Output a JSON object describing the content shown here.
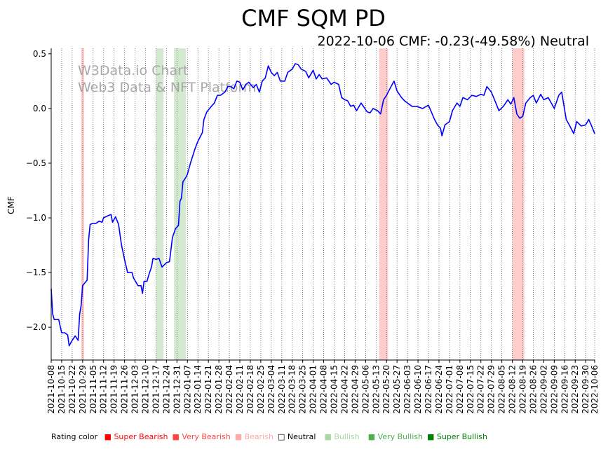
{
  "chart_data": {
    "type": "line",
    "title": "CMF SQM PD",
    "subtitle": "2022-10-06 CMF: -0.23(-49.58%) Neutral",
    "ylabel": "CMF",
    "xlabel": "",
    "ylim": [
      -2.3,
      0.55
    ],
    "yticks": [
      0.5,
      0.0,
      -0.5,
      -1.0,
      -1.5,
      -2.0
    ],
    "ytick_labels": [
      "0.5",
      "0.0",
      "−0.5",
      "−1.0",
      "−1.5",
      "−2.0"
    ],
    "x_start": "2021-10-08",
    "x_end": "2022-10-06",
    "xtick_labels": [
      "2021-10-08",
      "2021-10-15",
      "2021-10-22",
      "2021-10-29",
      "2021-11-05",
      "2021-11-12",
      "2021-11-19",
      "2021-11-26",
      "2021-12-03",
      "2021-12-10",
      "2021-12-17",
      "2021-12-24",
      "2021-12-31",
      "2022-01-07",
      "2022-01-14",
      "2022-01-21",
      "2022-01-28",
      "2022-02-04",
      "2022-02-11",
      "2022-02-18",
      "2022-02-25",
      "2022-03-04",
      "2022-03-11",
      "2022-03-18",
      "2022-03-25",
      "2022-04-01",
      "2022-04-08",
      "2022-04-15",
      "2022-04-22",
      "2022-04-29",
      "2022-05-06",
      "2022-05-13",
      "2022-05-20",
      "2022-05-27",
      "2022-06-03",
      "2022-06-10",
      "2022-06-17",
      "2022-06-24",
      "2022-07-01",
      "2022-07-08",
      "2022-07-15",
      "2022-07-22",
      "2022-07-29",
      "2022-08-05",
      "2022-08-12",
      "2022-08-19",
      "2022-08-26",
      "2022-09-02",
      "2022-09-09",
      "2022-09-16",
      "2022-09-23",
      "2022-09-30",
      "2022-10-06"
    ],
    "grid": "x-dotted",
    "series": [
      {
        "name": "",
        "color": "#0000ff",
        "points": [
          [
            "2021-10-08",
            -1.65
          ],
          [
            "2021-10-09",
            -1.88
          ],
          [
            "2021-10-10",
            -1.93
          ],
          [
            "2021-10-13",
            -1.93
          ],
          [
            "2021-10-15",
            -2.05
          ],
          [
            "2021-10-17",
            -2.05
          ],
          [
            "2021-10-19",
            -2.07
          ],
          [
            "2021-10-20",
            -2.17
          ],
          [
            "2021-10-22",
            -2.12
          ],
          [
            "2021-10-24",
            -2.08
          ],
          [
            "2021-10-26",
            -2.12
          ],
          [
            "2021-10-27",
            -1.88
          ],
          [
            "2021-10-28",
            -1.8
          ],
          [
            "2021-10-29",
            -1.62
          ],
          [
            "2021-11-01",
            -1.57
          ],
          [
            "2021-11-02",
            -1.2
          ],
          [
            "2021-11-03",
            -1.06
          ],
          [
            "2021-11-05",
            -1.05
          ],
          [
            "2021-11-07",
            -1.05
          ],
          [
            "2021-11-09",
            -1.03
          ],
          [
            "2021-11-11",
            -1.04
          ],
          [
            "2021-11-12",
            -1.0
          ],
          [
            "2021-11-15",
            -0.98
          ],
          [
            "2021-11-17",
            -0.97
          ],
          [
            "2021-11-18",
            -1.04
          ],
          [
            "2021-11-20",
            -0.99
          ],
          [
            "2021-11-22",
            -1.06
          ],
          [
            "2021-11-24",
            -1.25
          ],
          [
            "2021-11-26",
            -1.38
          ],
          [
            "2021-11-28",
            -1.5
          ],
          [
            "2021-12-01",
            -1.5
          ],
          [
            "2021-12-02",
            -1.55
          ],
          [
            "2021-12-05",
            -1.62
          ],
          [
            "2021-12-07",
            -1.62
          ],
          [
            "2021-12-08",
            -1.69
          ],
          [
            "2021-12-09",
            -1.58
          ],
          [
            "2021-12-11",
            -1.58
          ],
          [
            "2021-12-12",
            -1.53
          ],
          [
            "2021-12-14",
            -1.45
          ],
          [
            "2021-12-15",
            -1.37
          ],
          [
            "2021-12-17",
            -1.38
          ],
          [
            "2021-12-19",
            -1.37
          ],
          [
            "2021-12-21",
            -1.45
          ],
          [
            "2021-12-24",
            -1.41
          ],
          [
            "2021-12-26",
            -1.4
          ],
          [
            "2021-12-28",
            -1.18
          ],
          [
            "2021-12-30",
            -1.1
          ],
          [
            "2022-01-01",
            -1.07
          ],
          [
            "2022-01-02",
            -0.85
          ],
          [
            "2022-01-03",
            -0.82
          ],
          [
            "2022-01-04",
            -0.67
          ],
          [
            "2022-01-06",
            -0.63
          ],
          [
            "2022-01-07",
            -0.6
          ],
          [
            "2022-01-09",
            -0.5
          ],
          [
            "2022-01-12",
            -0.37
          ],
          [
            "2022-01-14",
            -0.3
          ],
          [
            "2022-01-17",
            -0.22
          ],
          [
            "2022-01-18",
            -0.1
          ],
          [
            "2022-01-20",
            -0.03
          ],
          [
            "2022-01-23",
            0.02
          ],
          [
            "2022-01-25",
            0.05
          ],
          [
            "2022-01-27",
            0.12
          ],
          [
            "2022-01-29",
            0.12
          ],
          [
            "2022-02-01",
            0.15
          ],
          [
            "2022-02-03",
            0.2
          ],
          [
            "2022-02-05",
            0.2
          ],
          [
            "2022-02-07",
            0.18
          ],
          [
            "2022-02-09",
            0.25
          ],
          [
            "2022-02-11",
            0.24
          ],
          [
            "2022-02-13",
            0.17
          ],
          [
            "2022-02-15",
            0.22
          ],
          [
            "2022-02-17",
            0.24
          ],
          [
            "2022-02-20",
            0.19
          ],
          [
            "2022-02-22",
            0.22
          ],
          [
            "2022-02-24",
            0.15
          ],
          [
            "2022-02-26",
            0.25
          ],
          [
            "2022-02-28",
            0.28
          ],
          [
            "2022-03-02",
            0.39
          ],
          [
            "2022-03-04",
            0.33
          ],
          [
            "2022-03-06",
            0.3
          ],
          [
            "2022-03-08",
            0.33
          ],
          [
            "2022-03-10",
            0.25
          ],
          [
            "2022-03-13",
            0.25
          ],
          [
            "2022-03-15",
            0.33
          ],
          [
            "2022-03-18",
            0.36
          ],
          [
            "2022-03-20",
            0.41
          ],
          [
            "2022-03-22",
            0.4
          ],
          [
            "2022-03-24",
            0.36
          ],
          [
            "2022-03-27",
            0.34
          ],
          [
            "2022-03-29",
            0.28
          ],
          [
            "2022-04-01",
            0.35
          ],
          [
            "2022-04-03",
            0.27
          ],
          [
            "2022-04-05",
            0.31
          ],
          [
            "2022-04-07",
            0.27
          ],
          [
            "2022-04-10",
            0.28
          ],
          [
            "2022-04-13",
            0.22
          ],
          [
            "2022-04-15",
            0.24
          ],
          [
            "2022-04-18",
            0.22
          ],
          [
            "2022-04-20",
            0.1
          ],
          [
            "2022-04-22",
            0.08
          ],
          [
            "2022-04-24",
            0.07
          ],
          [
            "2022-04-26",
            0.02
          ],
          [
            "2022-04-28",
            0.03
          ],
          [
            "2022-04-30",
            -0.02
          ],
          [
            "2022-05-03",
            0.05
          ],
          [
            "2022-05-05",
            0.01
          ],
          [
            "2022-05-07",
            -0.03
          ],
          [
            "2022-05-09",
            -0.04
          ],
          [
            "2022-05-11",
            0.0
          ],
          [
            "2022-05-14",
            -0.02
          ],
          [
            "2022-05-16",
            -0.05
          ],
          [
            "2022-05-18",
            0.08
          ],
          [
            "2022-05-20",
            0.12
          ],
          [
            "2022-05-23",
            0.2
          ],
          [
            "2022-05-25",
            0.25
          ],
          [
            "2022-05-27",
            0.16
          ],
          [
            "2022-05-30",
            0.1
          ],
          [
            "2022-06-01",
            0.07
          ],
          [
            "2022-06-03",
            0.05
          ],
          [
            "2022-06-06",
            0.02
          ],
          [
            "2022-06-09",
            0.02
          ],
          [
            "2022-06-13",
            0.0
          ],
          [
            "2022-06-17",
            0.03
          ],
          [
            "2022-06-21",
            -0.1
          ],
          [
            "2022-06-23",
            -0.15
          ],
          [
            "2022-06-25",
            -0.18
          ],
          [
            "2022-06-26",
            -0.25
          ],
          [
            "2022-06-28",
            -0.15
          ],
          [
            "2022-07-01",
            -0.12
          ],
          [
            "2022-07-03",
            -0.02
          ],
          [
            "2022-07-06",
            0.05
          ],
          [
            "2022-07-08",
            0.02
          ],
          [
            "2022-07-10",
            0.1
          ],
          [
            "2022-07-13",
            0.08
          ],
          [
            "2022-07-16",
            0.12
          ],
          [
            "2022-07-19",
            0.11
          ],
          [
            "2022-07-22",
            0.13
          ],
          [
            "2022-07-24",
            0.12
          ],
          [
            "2022-07-26",
            0.2
          ],
          [
            "2022-07-29",
            0.15
          ],
          [
            "2022-08-01",
            0.05
          ],
          [
            "2022-08-03",
            -0.02
          ],
          [
            "2022-08-06",
            0.02
          ],
          [
            "2022-08-09",
            0.08
          ],
          [
            "2022-08-11",
            0.04
          ],
          [
            "2022-08-13",
            0.1
          ],
          [
            "2022-08-15",
            -0.05
          ],
          [
            "2022-08-17",
            -0.09
          ],
          [
            "2022-08-19",
            -0.07
          ],
          [
            "2022-08-21",
            0.05
          ],
          [
            "2022-08-24",
            0.1
          ],
          [
            "2022-08-26",
            0.12
          ],
          [
            "2022-08-28",
            0.05
          ],
          [
            "2022-08-31",
            0.13
          ],
          [
            "2022-09-02",
            0.08
          ],
          [
            "2022-09-05",
            0.1
          ],
          [
            "2022-09-07",
            0.05
          ],
          [
            "2022-09-09",
            0.0
          ],
          [
            "2022-09-12",
            0.12
          ],
          [
            "2022-09-14",
            0.15
          ],
          [
            "2022-09-17",
            -0.1
          ],
          [
            "2022-09-19",
            -0.15
          ],
          [
            "2022-09-22",
            -0.23
          ],
          [
            "2022-09-24",
            -0.12
          ],
          [
            "2022-09-27",
            -0.16
          ],
          [
            "2022-09-30",
            -0.15
          ],
          [
            "2022-10-02",
            -0.1
          ],
          [
            "2022-10-04",
            -0.16
          ],
          [
            "2022-10-06",
            -0.23
          ]
        ]
      }
    ],
    "bands": [
      {
        "start": "2021-10-28",
        "end": "2021-10-30",
        "color": "#ffcccc"
      },
      {
        "start": "2021-12-17",
        "end": "2021-12-22",
        "color": "#d4ead0"
      },
      {
        "start": "2021-12-29",
        "end": "2022-01-06",
        "color": "#d4ead0"
      },
      {
        "start": "2022-05-15",
        "end": "2022-05-21",
        "color": "#ffcccc"
      },
      {
        "start": "2022-08-12",
        "end": "2022-08-20",
        "color": "#ffcccc"
      }
    ],
    "watermark": [
      "W3Data.io Chart",
      "Web3 Data & NFT Platform"
    ],
    "legend": {
      "title": "Rating color",
      "items": [
        {
          "label": "Super Bearish",
          "color": "#ff0000"
        },
        {
          "label": "Very Bearish",
          "color": "#ff4444"
        },
        {
          "label": "Bearish",
          "color": "#ffaaaa"
        },
        {
          "label": "Neutral",
          "color": "#000000",
          "hollow": true
        },
        {
          "label": "Bullish",
          "color": "#a8d8a8"
        },
        {
          "label": "Very Bullish",
          "color": "#4caf50"
        },
        {
          "label": "Super Bullish",
          "color": "#008000"
        }
      ]
    }
  }
}
